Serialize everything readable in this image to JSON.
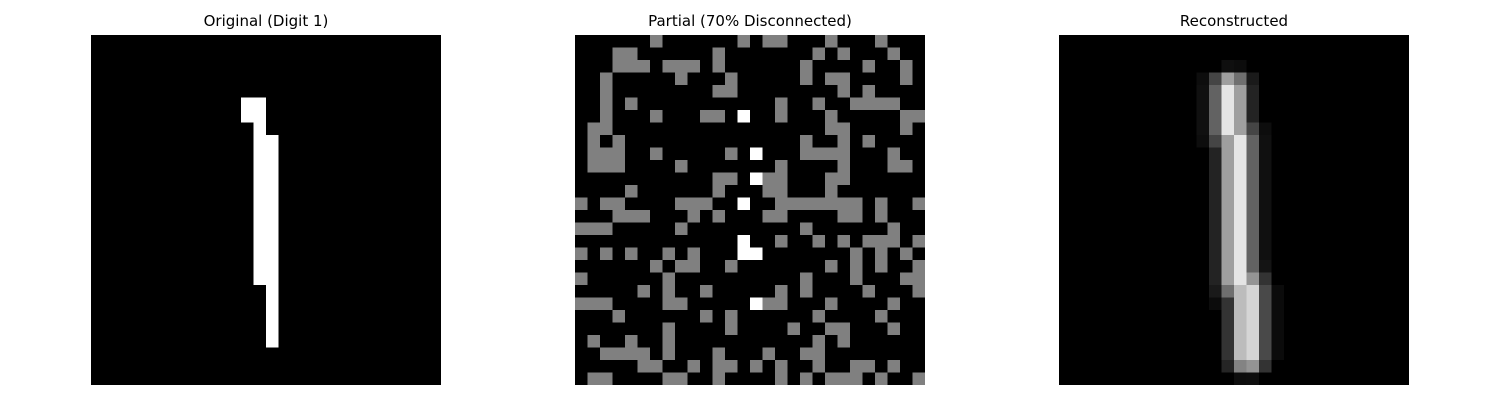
{
  "figure": {
    "panels": [
      {
        "title": "Original (Digit 1)",
        "image": "original-digit-image",
        "grid_size": [
          28,
          28
        ],
        "pixel_colors": {
          "background": "#000000",
          "stroke": "#ffffff"
        }
      },
      {
        "title": "Partial (70% Disconnected)",
        "image": "partial-digit-image",
        "grid_size": [
          28,
          28
        ],
        "disconnected_fraction": 0.7,
        "pixel_colors": {
          "background": "#000000",
          "disconnected": "#808080",
          "stroke": "#ffffff"
        }
      },
      {
        "title": "Reconstructed",
        "image": "reconstructed-digit-image",
        "grid_size": [
          28,
          28
        ],
        "pixel_colors": {
          "background": "#000000",
          "stroke": "#ffffff"
        }
      }
    ]
  }
}
